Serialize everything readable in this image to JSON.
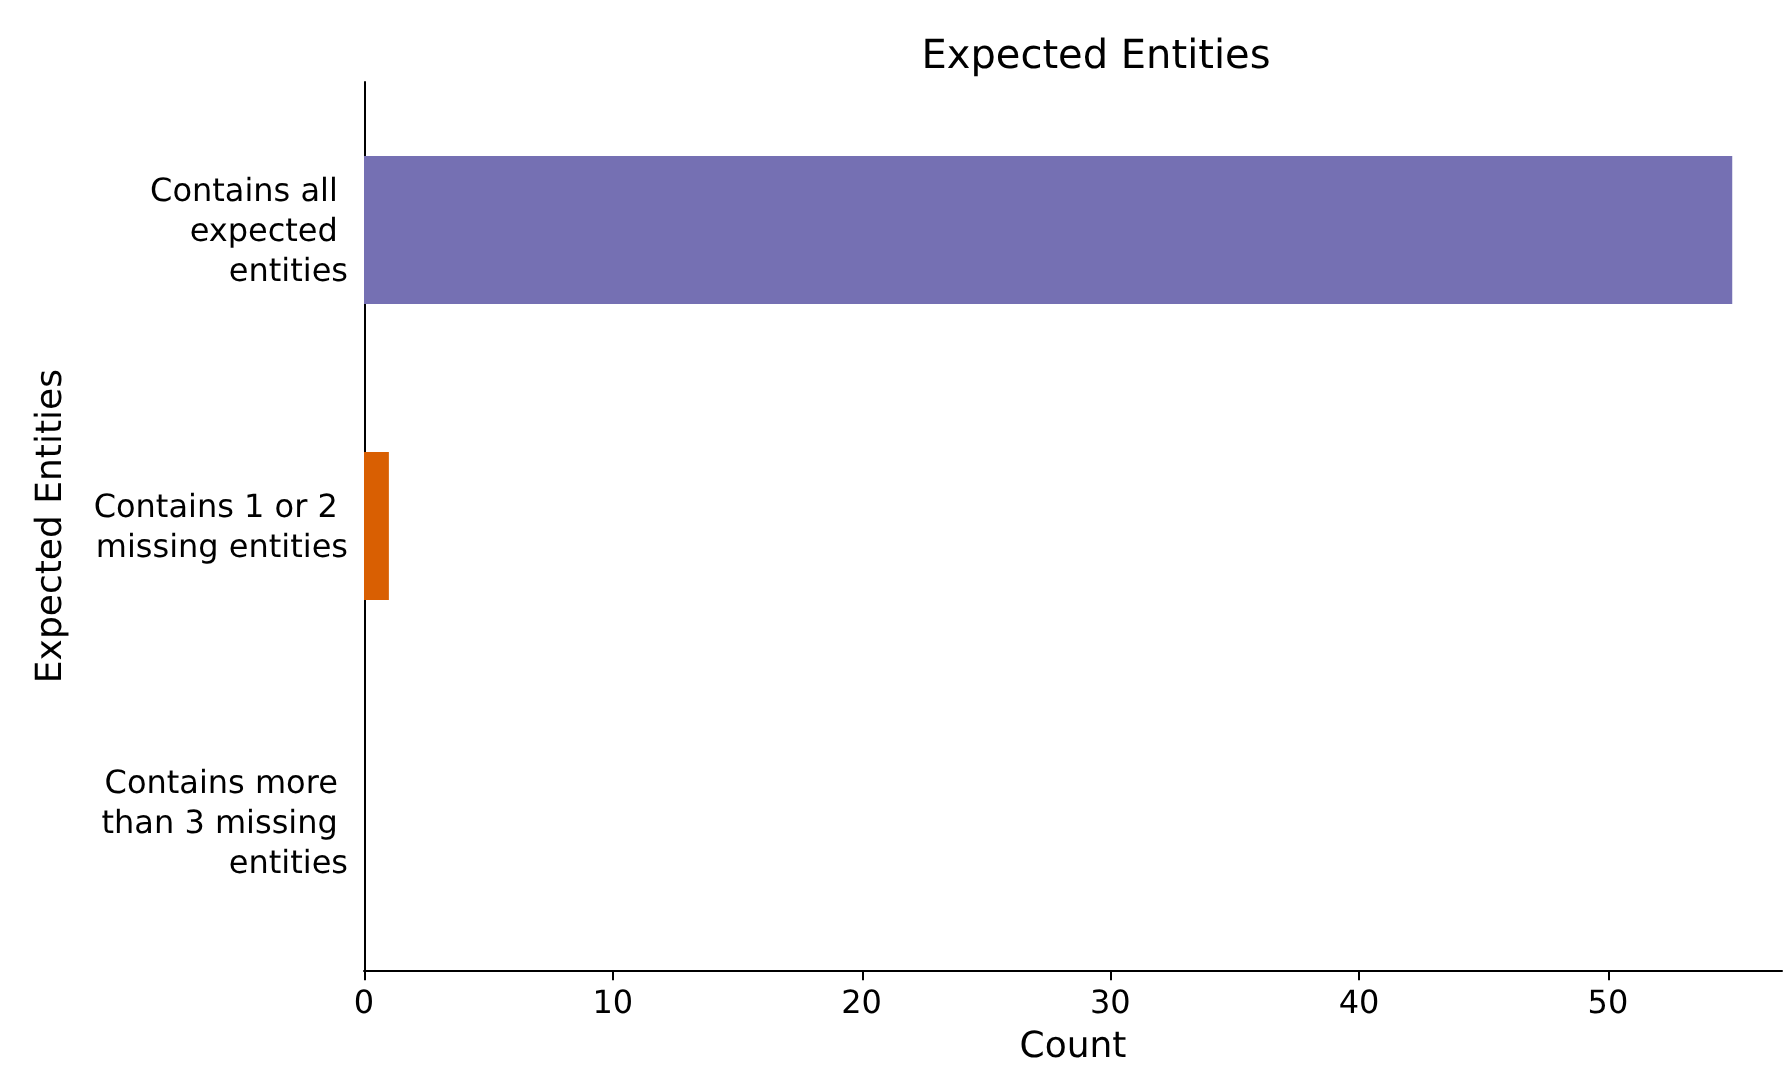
{
  "chart_data": {
    "type": "bar",
    "orientation": "horizontal",
    "title": "Expected Entities",
    "xlabel": "Count",
    "ylabel": "Expected Entities",
    "categories": [
      "Contains all expected entities",
      "Contains 1 or 2 missing entities",
      "Contains more than 3 missing entities"
    ],
    "values": [
      55,
      1,
      0
    ],
    "colors": [
      "#7570b3",
      "#d95f02",
      "#1b9e77"
    ],
    "xlim": [
      0,
      57
    ],
    "xticks": [
      0,
      10,
      20,
      30,
      40,
      50
    ],
    "grid": false
  }
}
